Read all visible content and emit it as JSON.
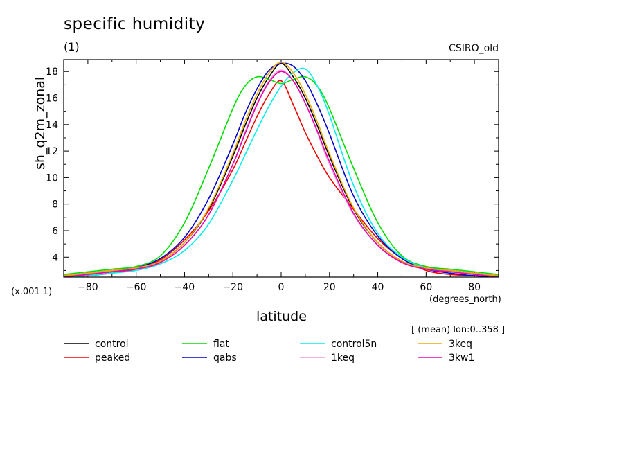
{
  "title": "specific humidity",
  "panel_label": "(1)",
  "model_label": "CSIRO_old",
  "scale_note": "(x.001 1)",
  "x_units": "(degrees_north)",
  "mean_note": "[ (mean) lon:0..358 ]",
  "chart_data": {
    "type": "line",
    "title": "specific humidity",
    "xlabel": "latitude",
    "ylabel": "sh_q2m_zonal",
    "xlim": [
      -90,
      90
    ],
    "ylim": [
      2.5,
      18.9
    ],
    "x_ticks": [
      -80,
      -60,
      -40,
      -20,
      0,
      20,
      40,
      60,
      80
    ],
    "y_ticks": [
      4,
      6,
      8,
      10,
      12,
      14,
      16,
      18
    ],
    "grid": false,
    "legend_position": "bottom",
    "x": [
      -90,
      -80,
      -70,
      -60,
      -50,
      -40,
      -30,
      -20,
      -15,
      -10,
      -5,
      0,
      5,
      10,
      15,
      20,
      30,
      40,
      50,
      60,
      70,
      80,
      90
    ],
    "series": [
      {
        "name": "control",
        "color": "#000000",
        "values": [
          2.6,
          2.8,
          3.0,
          3.2,
          3.7,
          5.1,
          7.6,
          11.6,
          13.9,
          16.0,
          17.6,
          18.6,
          17.6,
          16.0,
          13.9,
          11.6,
          7.6,
          5.1,
          3.7,
          3.2,
          3.0,
          2.8,
          2.6
        ]
      },
      {
        "name": "peaked",
        "color": "#ee0000",
        "values": [
          2.5,
          2.6,
          2.8,
          3.1,
          3.8,
          5.3,
          7.5,
          10.6,
          12.6,
          14.6,
          16.3,
          17.3,
          15.5,
          13.4,
          11.6,
          10.0,
          7.6,
          5.4,
          3.9,
          3.0,
          2.7,
          2.6,
          2.5
        ]
      },
      {
        "name": "flat",
        "color": "#00dd00",
        "values": [
          2.7,
          2.9,
          3.1,
          3.3,
          4.1,
          6.6,
          10.7,
          15.2,
          16.9,
          17.6,
          17.4,
          17.1,
          17.4,
          17.6,
          16.9,
          15.2,
          10.7,
          6.6,
          4.1,
          3.3,
          3.1,
          2.9,
          2.7
        ]
      },
      {
        "name": "qabs",
        "color": "#0000cc",
        "values": [
          2.5,
          2.7,
          2.9,
          3.2,
          3.9,
          5.5,
          8.4,
          12.5,
          14.8,
          16.7,
          18.1,
          18.6,
          18.4,
          17.3,
          15.5,
          13.3,
          8.6,
          5.6,
          3.9,
          3.1,
          2.8,
          2.6,
          2.5
        ]
      },
      {
        "name": "control5n",
        "color": "#00eeee",
        "values": [
          2.5,
          2.6,
          2.8,
          3.0,
          3.5,
          4.5,
          6.5,
          9.8,
          11.7,
          13.6,
          15.4,
          16.9,
          17.9,
          18.2,
          16.9,
          14.7,
          9.4,
          5.8,
          4.0,
          3.2,
          2.9,
          2.7,
          2.5
        ]
      },
      {
        "name": "1keq",
        "color": "#ee99dd",
        "values": [
          2.5,
          2.7,
          2.9,
          3.1,
          3.6,
          4.9,
          7.2,
          11.0,
          13.4,
          15.6,
          17.3,
          18.1,
          17.3,
          15.6,
          13.4,
          11.0,
          7.2,
          4.9,
          3.6,
          3.1,
          2.9,
          2.7,
          2.5
        ]
      },
      {
        "name": "3keq",
        "color": "#eeaa00",
        "values": [
          2.6,
          2.8,
          3.0,
          3.2,
          3.7,
          5.1,
          7.7,
          11.8,
          14.2,
          16.3,
          17.9,
          18.7,
          17.9,
          16.3,
          14.2,
          11.8,
          7.7,
          5.1,
          3.7,
          3.2,
          3.0,
          2.8,
          2.6
        ]
      },
      {
        "name": "3kw1",
        "color": "#ee00aa",
        "values": [
          2.5,
          2.7,
          2.9,
          3.1,
          3.6,
          4.9,
          7.2,
          11.0,
          13.3,
          15.5,
          17.2,
          18.0,
          17.3,
          15.6,
          13.5,
          11.2,
          7.3,
          4.9,
          3.6,
          3.1,
          2.9,
          2.7,
          2.5
        ]
      }
    ]
  }
}
